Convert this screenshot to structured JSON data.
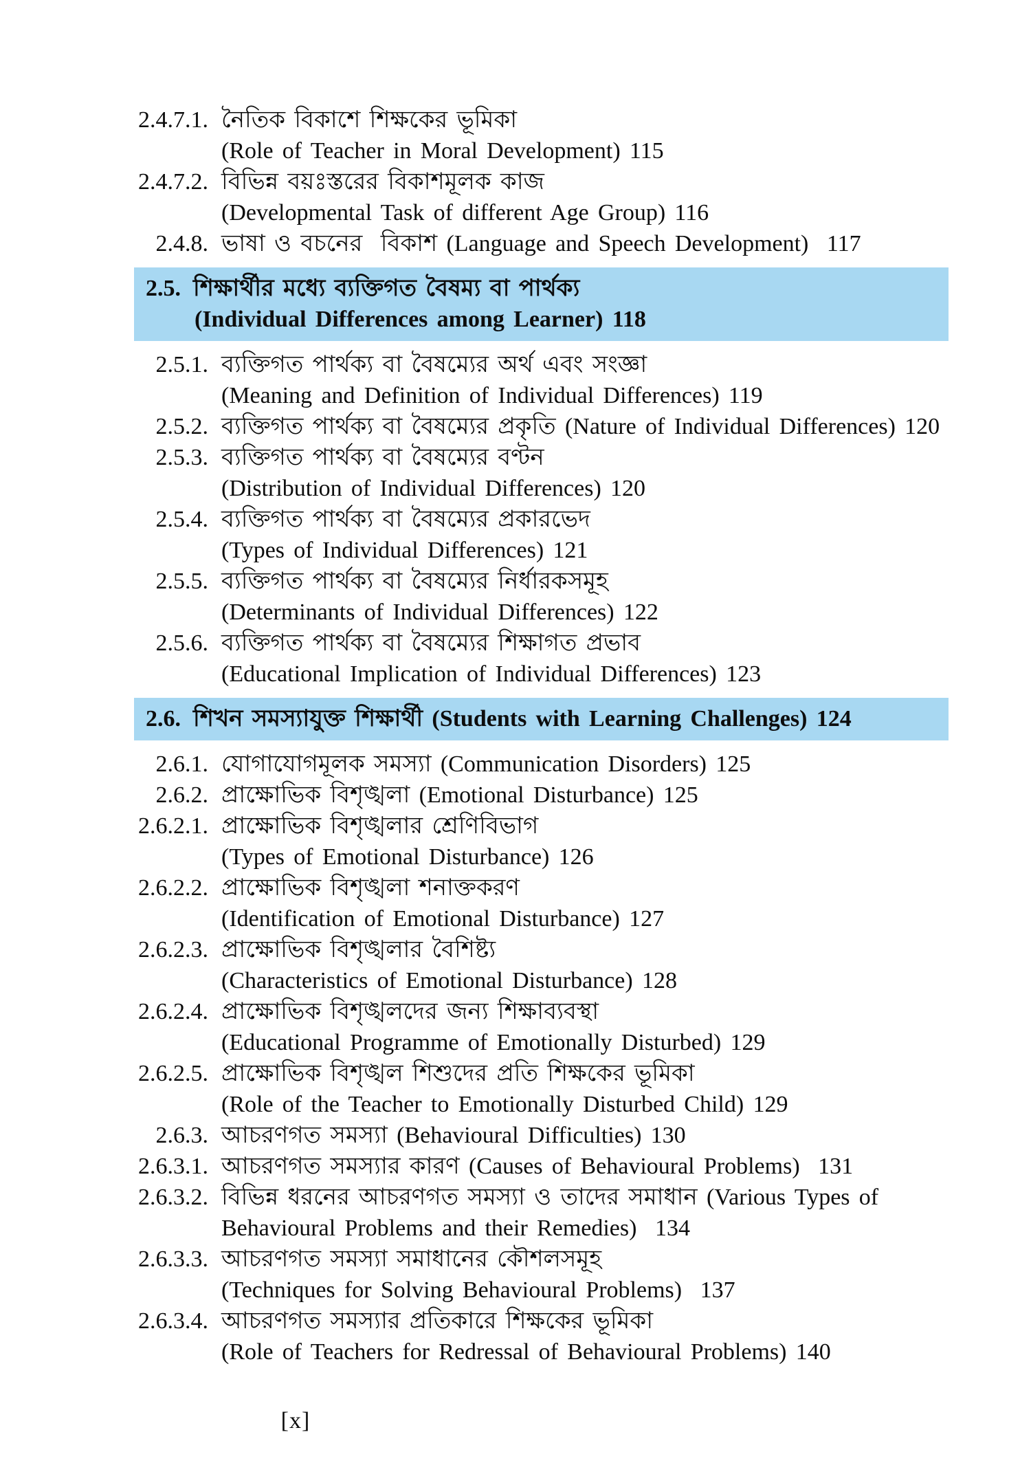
{
  "colors": {
    "highlight": "#a8d8f2",
    "text": "#0d0d0d",
    "background": "#ffffff"
  },
  "footer": {
    "page_label": "[x]"
  },
  "toc": {
    "entries": [
      {
        "num": "2.4.7.1.",
        "type": "item",
        "lines": [
          "নৈতিক বিকাশে শিক্ষকের ভূমিকা",
          "(Role of Teacher in Moral Development) 115"
        ]
      },
      {
        "num": "2.4.7.2.",
        "type": "item",
        "lines": [
          "বিভিন্ন বয়ঃস্তরের বিকাশমূলক কাজ",
          "(Developmental Task of different Age Group) 116"
        ]
      },
      {
        "num": "2.4.8.",
        "type": "item",
        "lines": [
          "ভাষা ও বচনের  বিকাশ (Language and Speech Development)  117"
        ]
      },
      {
        "num": "2.5.",
        "type": "header",
        "lines": [
          "শিক্ষার্থীর মধ্যে ব্যক্তিগত বৈষম্য বা পার্থক্য",
          "(Individual Differences among Learner) 118"
        ]
      },
      {
        "num": "2.5.1.",
        "type": "item",
        "lines": [
          "ব্যক্তিগত পার্থক্য বা বৈষম্যের অর্থ এবং সংজ্ঞা",
          "(Meaning and Definition of Individual Differences) 119"
        ]
      },
      {
        "num": "2.5.2.",
        "type": "item",
        "lines": [
          "ব্যক্তিগত পার্থক্য বা বৈষম্যের প্রকৃতি (Nature of Individual Differences) 120"
        ]
      },
      {
        "num": "2.5.3.",
        "type": "item",
        "lines": [
          "ব্যক্তিগত পার্থক্য বা বৈষম্যের বণ্টন",
          "(Distribution of Individual Differences) 120"
        ]
      },
      {
        "num": "2.5.4.",
        "type": "item",
        "lines": [
          "ব্যক্তিগত পার্থক্য বা বৈষম্যের প্রকারভেদ",
          "(Types of Individual Differences) 121"
        ]
      },
      {
        "num": "2.5.5.",
        "type": "item",
        "lines": [
          "ব্যক্তিগত পার্থক্য বা বৈষম্যের নির্ধারকসমূহ",
          "(Determinants of Individual Differences) 122"
        ]
      },
      {
        "num": "2.5.6.",
        "type": "item",
        "lines": [
          "ব্যক্তিগত পার্থক্য বা বৈষম্যের শিক্ষাগত প্রভাব",
          "(Educational Implication of Individual Differences) 123"
        ]
      },
      {
        "num": "2.6.",
        "type": "header",
        "lines": [
          "শিখন সমস্যাযুক্ত শিক্ষার্থী (Students with Learning Challenges) 124"
        ]
      },
      {
        "num": "2.6.1.",
        "type": "item",
        "lines": [
          "যোগাযোগমূলক সমস্যা (Communication Disorders) 125"
        ]
      },
      {
        "num": "2.6.2.",
        "type": "item",
        "lines": [
          "প্রাক্ষোভিক বিশৃঙ্খলা (Emotional Disturbance) 125"
        ]
      },
      {
        "num": "2.6.2.1.",
        "type": "item",
        "lines": [
          "প্রাক্ষোভিক বিশৃঙ্খলার শ্রেণিবিভাগ",
          "(Types of Emotional Disturbance) 126"
        ]
      },
      {
        "num": "2.6.2.2.",
        "type": "item",
        "lines": [
          "প্রাক্ষোভিক বিশৃঙ্খলা শনাক্তকরণ",
          "(Identification of Emotional Disturbance) 127"
        ]
      },
      {
        "num": "2.6.2.3.",
        "type": "item",
        "lines": [
          "প্রাক্ষোভিক বিশৃঙ্খলার বৈশিষ্ট্য",
          "(Characteristics of Emotional Disturbance) 128"
        ]
      },
      {
        "num": "2.6.2.4.",
        "type": "item",
        "lines": [
          "প্রাক্ষোভিক বিশৃঙ্খলদের জন্য শিক্ষাব্যবস্থা",
          "(Educational Programme of Emotionally Disturbed) 129"
        ]
      },
      {
        "num": "2.6.2.5.",
        "type": "item",
        "lines": [
          "প্রাক্ষোভিক বিশৃঙ্খল শিশুদের প্রতি শিক্ষকের ভূমিকা",
          "(Role of the Teacher to Emotionally Disturbed Child) 129"
        ]
      },
      {
        "num": "2.6.3.",
        "type": "item",
        "lines": [
          "আচরণগত সমস্যা (Behavioural Difficulties) 130"
        ]
      },
      {
        "num": "2.6.3.1.",
        "type": "item",
        "lines": [
          "আচরণগত সমস্যার কারণ (Causes of Behavioural Problems)  131"
        ]
      },
      {
        "num": "2.6.3.2.",
        "type": "item",
        "lines": [
          "বিভিন্ন ধরনের আচরণগত সমস্যা ও তাদের সমাধান (Various Types of",
          "Behavioural Problems and their Remedies)  134"
        ]
      },
      {
        "num": "2.6.3.3.",
        "type": "item",
        "lines": [
          "আচরণগত সমস্যা সমাধানের কৌশলসমূহ",
          "(Techniques for Solving Behavioural Problems)  137"
        ]
      },
      {
        "num": "2.6.3.4.",
        "type": "item",
        "lines": [
          "আচরণগত সমস্যার প্রতিকারে শিক্ষকের ভূমিকা",
          "(Role of Teachers for Redressal of Behavioural Problems) 140"
        ]
      }
    ]
  }
}
